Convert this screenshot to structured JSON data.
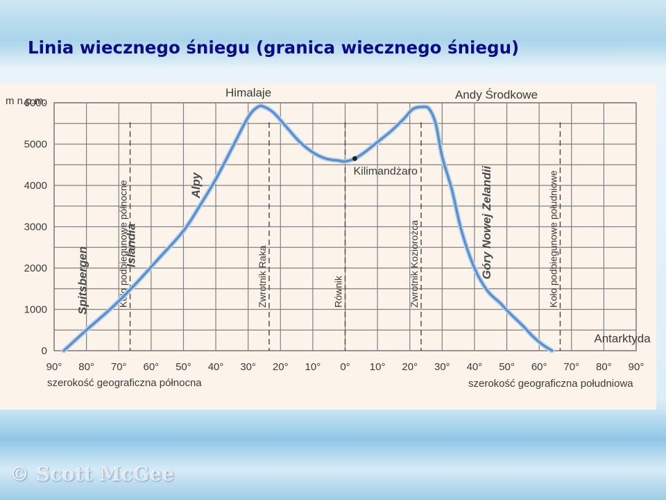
{
  "slide": {
    "title": "Linia wiecznego śniegu (granica wiecznego śniegu)",
    "watermark": "© Scott McGee"
  },
  "chart_data": {
    "type": "line",
    "ylabel": "m n.p.m.",
    "xlabel_left": "szerokość geograficzna północna",
    "xlabel_right": "szerokość geograficzna południowa",
    "ylim": [
      0,
      6000
    ],
    "y_ticks": [
      "0",
      "1000",
      "2000",
      "3000",
      "4000",
      "5000",
      "6000"
    ],
    "y_tick_values": [
      0,
      1000,
      2000,
      3000,
      4000,
      5000,
      6000
    ],
    "x_ticks": [
      "90°",
      "80°",
      "70°",
      "60°",
      "50°",
      "40°",
      "30°",
      "20°",
      "10°",
      "0°",
      "10°",
      "20°",
      "30°",
      "40°",
      "50°",
      "60°",
      "70°",
      "80°",
      "90°"
    ],
    "xlim": [
      -90,
      90
    ],
    "grid": true,
    "colors": {
      "line": "#5c8fc9",
      "line_glow": "#b9d4ee",
      "grid": "#7f7f7f",
      "background": "#fcf4ea",
      "title": "#0b0b8a"
    },
    "series": [
      {
        "x": [
          -87,
          -80,
          -72,
          -65,
          -58,
          -50,
          -45,
          -40,
          -35,
          -30,
          -27,
          -25,
          -22,
          -18,
          -14,
          -10,
          -6,
          -2,
          0,
          3,
          6,
          10,
          14,
          18,
          21,
          24,
          26,
          28,
          30,
          33,
          36,
          40,
          44,
          48,
          51,
          55,
          58,
          61,
          64
        ],
        "y": [
          0,
          500,
          1050,
          1600,
          2200,
          2900,
          3500,
          4150,
          4900,
          5650,
          5900,
          5900,
          5750,
          5400,
          5050,
          4800,
          4650,
          4600,
          4580,
          4650,
          4800,
          5050,
          5300,
          5600,
          5850,
          5900,
          5850,
          5500,
          4700,
          3900,
          2900,
          2000,
          1450,
          1150,
          900,
          600,
          350,
          150,
          0
        ]
      }
    ],
    "point": {
      "label": "Kilimandżaro",
      "x": 3,
      "y": 4650
    },
    "vertical_lines": [
      {
        "label": "Koło podbiegunowe północne",
        "x": -66.5
      },
      {
        "label": "Zwrotnik Raka",
        "x": -23.5
      },
      {
        "label": "Równik",
        "x": 0
      },
      {
        "label": "Zwrotnik Koziorożca",
        "x": 23.5
      },
      {
        "label": "Koło podbiegunowe południowe",
        "x": 66.5
      }
    ],
    "annotations": [
      {
        "label": "Spitsbergen",
        "x": -80,
        "y": 1700,
        "rotate": true
      },
      {
        "label": "Islandia",
        "x": -65,
        "y": 2550,
        "rotate": true
      },
      {
        "label": "Alpy",
        "x": -45,
        "y": 4000,
        "rotate": true
      },
      {
        "label": "Himalaje",
        "x": -37,
        "y": 6150,
        "rotate": false
      },
      {
        "label": "Andy Środkowe",
        "x": 34,
        "y": 6100,
        "rotate": false
      },
      {
        "label": "Góry Nowej Zelandii",
        "x": 45,
        "y": 3100,
        "rotate": true
      },
      {
        "label": "Antarktyda",
        "x": 77,
        "y": 200,
        "rotate": false
      }
    ]
  }
}
